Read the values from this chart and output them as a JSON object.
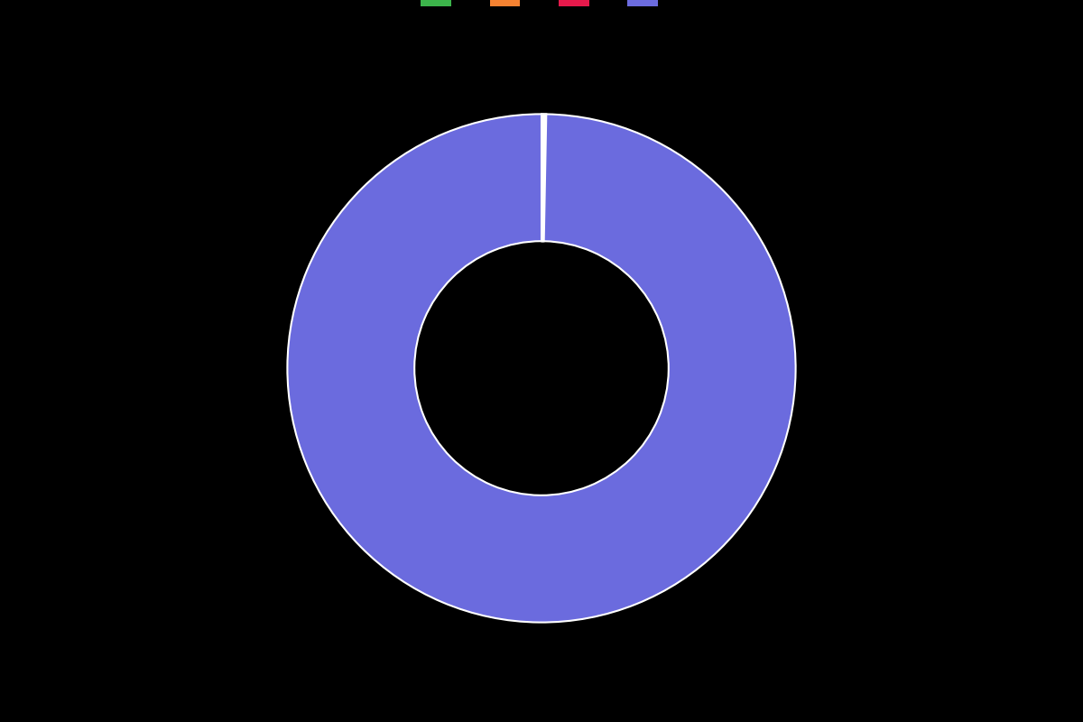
{
  "slices": [
    0.1,
    0.1,
    0.1,
    99.7
  ],
  "colors": [
    "#3cb44b",
    "#f58231",
    "#e6194b",
    "#6b6bde"
  ],
  "background_color": "#000000",
  "wedge_edge_color": "#ffffff",
  "wedge_edge_width": 1.5,
  "donut_width": 0.5,
  "legend_colors": [
    "#3cb44b",
    "#f58231",
    "#e6194b",
    "#6b6bde"
  ],
  "legend_labels": [
    "",
    "",
    "",
    ""
  ],
  "startangle": 90,
  "figsize": [
    12.0,
    8.0
  ],
  "dpi": 100
}
